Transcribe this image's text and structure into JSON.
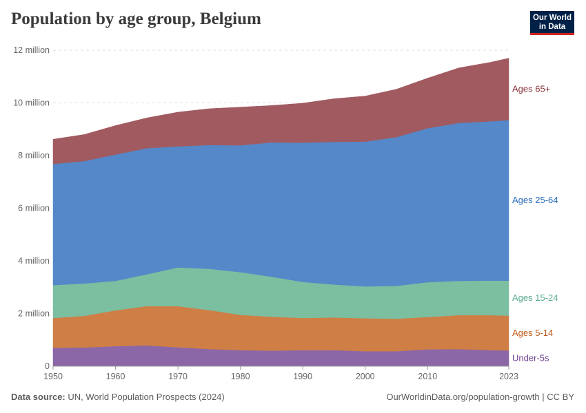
{
  "header": {
    "title": "Population by age group, Belgium",
    "logo_line1": "Our World",
    "logo_line2": "in Data"
  },
  "footer": {
    "source_label": "Data source:",
    "source_text": "UN, World Population Prospects (2024)",
    "credit": "OurWorldinData.org/population-growth | CC BY"
  },
  "chart_data": {
    "type": "area",
    "stacked": true,
    "title": "Population by age group, Belgium",
    "xlim": [
      1950,
      2023
    ],
    "ylim": [
      0,
      12000000
    ],
    "x_ticks": [
      1950,
      1960,
      1970,
      1980,
      1990,
      2000,
      2010,
      2023
    ],
    "y_ticks": [
      {
        "value": 0,
        "label": "0"
      },
      {
        "value": 2000000,
        "label": "2 million"
      },
      {
        "value": 4000000,
        "label": "4 million"
      },
      {
        "value": 6000000,
        "label": "6 million"
      },
      {
        "value": 8000000,
        "label": "8 million"
      },
      {
        "value": 10000000,
        "label": "10 million"
      },
      {
        "value": 12000000,
        "label": "12 million"
      }
    ],
    "grid": "horizontal-dashed",
    "x": [
      1950,
      1955,
      1960,
      1965,
      1970,
      1975,
      1980,
      1985,
      1990,
      1995,
      2000,
      2005,
      2010,
      2015,
      2020,
      2023
    ],
    "series": [
      {
        "name": "Under-5s",
        "label": "Under-5s",
        "color": "#8c67a8",
        "label_color": "#6d3e91",
        "values": [
          700000,
          710000,
          760000,
          790000,
          720000,
          650000,
          610000,
          590000,
          610000,
          610000,
          570000,
          570000,
          640000,
          650000,
          610000,
          600000
        ]
      },
      {
        "name": "Ages 5-14",
        "label": "Ages 5-14",
        "color": "#cf7e45",
        "label_color": "#c05917",
        "values": [
          1130000,
          1200000,
          1360000,
          1490000,
          1560000,
          1480000,
          1340000,
          1290000,
          1220000,
          1240000,
          1250000,
          1230000,
          1230000,
          1290000,
          1330000,
          1320000
        ]
      },
      {
        "name": "Ages 15-24",
        "label": "Ages 15-24",
        "color": "#7cbea0",
        "label_color": "#58ac8c",
        "values": [
          1250000,
          1230000,
          1120000,
          1210000,
          1470000,
          1570000,
          1620000,
          1520000,
          1370000,
          1250000,
          1210000,
          1250000,
          1320000,
          1300000,
          1310000,
          1330000
        ]
      },
      {
        "name": "Ages 25-64",
        "label": "Ages 25-64",
        "color": "#5588c8",
        "label_color": "#286bbb",
        "values": [
          4600000,
          4650000,
          4800000,
          4790000,
          4600000,
          4700000,
          4820000,
          5100000,
          5290000,
          5420000,
          5500000,
          5650000,
          5850000,
          6000000,
          6050000,
          6100000
        ]
      },
      {
        "name": "Ages 65+",
        "label": "Ages 65+",
        "color": "#a15a60",
        "label_color": "#883039",
        "values": [
          940000,
          1010000,
          1100000,
          1150000,
          1300000,
          1380000,
          1450000,
          1400000,
          1500000,
          1640000,
          1730000,
          1820000,
          1900000,
          2090000,
          2240000,
          2350000
        ]
      }
    ]
  }
}
